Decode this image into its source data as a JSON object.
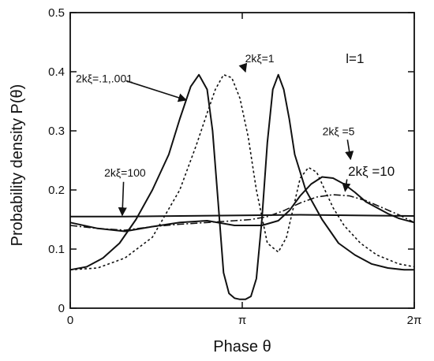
{
  "chart_data": {
    "type": "line",
    "xlabel": "Phase θ",
    "ylabel": "Probability density P(θ)",
    "xlim": [
      0,
      6.2832
    ],
    "ylim": [
      0,
      0.5
    ],
    "x_ticks": [
      {
        "value": 0,
        "label": "0"
      },
      {
        "value": 3.1416,
        "label": "π"
      },
      {
        "value": 6.2832,
        "label": "2π"
      }
    ],
    "y_ticks": [
      {
        "value": 0,
        "label": "0"
      },
      {
        "value": 0.1,
        "label": "0.1"
      },
      {
        "value": 0.2,
        "label": "0.2"
      },
      {
        "value": 0.3,
        "label": "0.3"
      },
      {
        "value": 0.4,
        "label": "0.4"
      },
      {
        "value": 0.5,
        "label": "0.5"
      }
    ],
    "grid": false,
    "series": [
      {
        "style": "solid",
        "x": [
          0,
          0.3,
          0.6,
          0.9,
          1.2,
          1.5,
          1.8,
          2.0,
          2.2,
          2.35,
          2.5,
          2.6,
          2.7,
          2.8,
          2.9,
          3.0,
          3.1,
          3.2,
          3.3,
          3.4,
          3.5,
          3.6,
          3.7,
          3.8,
          3.9,
          4.0,
          4.1,
          4.3,
          4.6,
          4.9,
          5.2,
          5.5,
          5.8,
          6.1,
          6.2832
        ],
        "y": [
          0.065,
          0.07,
          0.085,
          0.11,
          0.15,
          0.2,
          0.26,
          0.32,
          0.375,
          0.395,
          0.37,
          0.3,
          0.18,
          0.06,
          0.025,
          0.017,
          0.015,
          0.015,
          0.02,
          0.05,
          0.15,
          0.28,
          0.37,
          0.395,
          0.37,
          0.32,
          0.26,
          0.2,
          0.15,
          0.11,
          0.09,
          0.075,
          0.068,
          0.065,
          0.065
        ]
      },
      {
        "style": "dotted",
        "x": [
          0,
          0.5,
          1.0,
          1.5,
          2.0,
          2.3,
          2.5,
          2.65,
          2.8,
          2.95,
          3.1,
          3.25,
          3.4,
          3.6,
          3.8,
          3.95,
          4.1,
          4.2,
          4.35,
          4.5,
          4.65,
          4.8,
          5.0,
          5.3,
          5.6,
          6.0,
          6.2832
        ],
        "y": [
          0.065,
          0.068,
          0.085,
          0.12,
          0.2,
          0.275,
          0.33,
          0.37,
          0.395,
          0.39,
          0.355,
          0.29,
          0.2,
          0.11,
          0.095,
          0.12,
          0.18,
          0.22,
          0.238,
          0.23,
          0.2,
          0.17,
          0.14,
          0.11,
          0.09,
          0.075,
          0.07
        ]
      },
      {
        "style": "solid",
        "x": [
          0,
          0.5,
          1.0,
          1.5,
          2.0,
          2.5,
          3.0,
          3.5,
          3.8,
          4.0,
          4.2,
          4.4,
          4.6,
          4.8,
          5.0,
          5.2,
          5.4,
          5.6,
          5.8,
          6.0,
          6.2832
        ],
        "y": [
          0.145,
          0.135,
          0.13,
          0.138,
          0.145,
          0.148,
          0.14,
          0.14,
          0.148,
          0.165,
          0.19,
          0.21,
          0.222,
          0.22,
          0.21,
          0.196,
          0.18,
          0.17,
          0.16,
          0.152,
          0.145
        ]
      },
      {
        "style": "dash-dot",
        "x": [
          0,
          0.5,
          1.0,
          1.5,
          2.0,
          2.5,
          3.0,
          3.3,
          3.6,
          3.9,
          4.2,
          4.5,
          4.8,
          5.1,
          5.4,
          5.7,
          6.0,
          6.2832
        ],
        "y": [
          0.14,
          0.135,
          0.132,
          0.138,
          0.142,
          0.145,
          0.148,
          0.15,
          0.155,
          0.165,
          0.178,
          0.188,
          0.192,
          0.19,
          0.182,
          0.17,
          0.158,
          0.145
        ]
      },
      {
        "style": "solid",
        "x": [
          0,
          1.0,
          2.0,
          3.1416,
          4.2,
          5.2,
          6.2832
        ],
        "y": [
          0.155,
          0.155,
          0.156,
          0.157,
          0.158,
          0.157,
          0.156
        ]
      }
    ],
    "annotations": [
      {
        "text": "2kξ=.1,.001",
        "x": 0.62,
        "y": 0.382,
        "size": "normal",
        "arrow_to": [
          2.12,
          0.352
        ]
      },
      {
        "text": "2kξ=1",
        "x": 3.46,
        "y": 0.416,
        "size": "normal",
        "arrow_to": [
          3.2,
          0.4
        ]
      },
      {
        "text": "l=1",
        "x": 5.2,
        "y": 0.415,
        "size": "big"
      },
      {
        "text": "2kξ =5",
        "x": 4.9,
        "y": 0.293,
        "size": "normal",
        "arrow_to": [
          5.12,
          0.252
        ]
      },
      {
        "text": "2kξ =10",
        "x": 5.5,
        "y": 0.224,
        "size": "big",
        "arrow_to": [
          5.02,
          0.198
        ]
      },
      {
        "text": "2kξ=100",
        "x": 1.0,
        "y": 0.223,
        "size": "normal",
        "arrow_to": [
          0.95,
          0.157
        ]
      }
    ]
  }
}
